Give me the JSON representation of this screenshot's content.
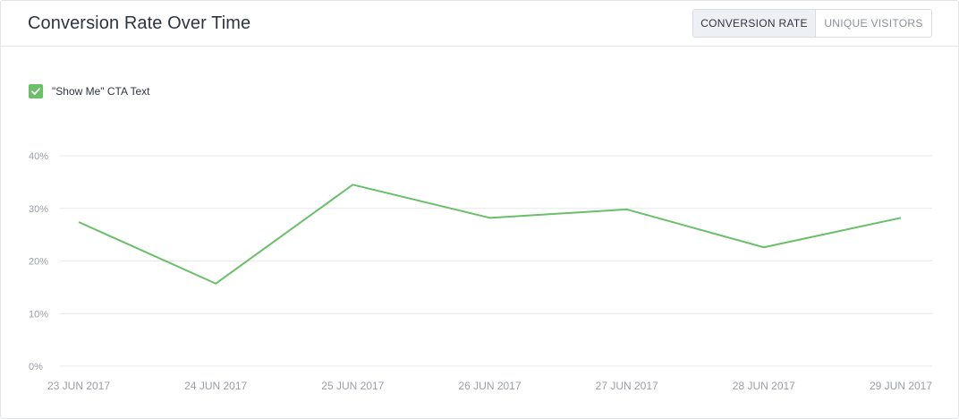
{
  "header": {
    "title": "Conversion Rate Over Time",
    "toggle": {
      "active_label": "CONVERSION RATE",
      "inactive_label": "UNIQUE VISITORS"
    }
  },
  "legend": {
    "label": "\"Show Me\" CTA Text",
    "checked": true,
    "color": "#6abf69"
  },
  "colors": {
    "series": "#6abf69",
    "grid": "#e6e8eb",
    "axis_text": "#9a9fa7"
  },
  "chart_data": {
    "type": "line",
    "categories": [
      "23 JUN 2017",
      "24 JUN 2017",
      "25 JUN 2017",
      "26 JUN 2017",
      "27 JUN 2017",
      "28 JUN 2017",
      "29 JUN 2017"
    ],
    "series": [
      {
        "name": "\"Show Me\" CTA Text",
        "values": [
          27.4,
          15.7,
          34.5,
          28.2,
          29.8,
          22.6,
          28.2
        ]
      }
    ],
    "yticks": [
      "0%",
      "10%",
      "20%",
      "30%",
      "40%"
    ],
    "ylim": [
      0,
      40
    ],
    "grid": true,
    "legend_position": "top-left"
  }
}
